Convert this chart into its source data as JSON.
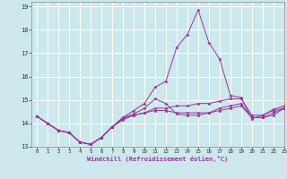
{
  "xlabel": "Windchill (Refroidissement éolien,°C)",
  "xlim": [
    -0.5,
    23
  ],
  "ylim": [
    13,
    19.2
  ],
  "yticks": [
    13,
    14,
    15,
    16,
    17,
    18,
    19
  ],
  "xticks": [
    0,
    1,
    2,
    3,
    4,
    5,
    6,
    7,
    8,
    9,
    10,
    11,
    12,
    13,
    14,
    15,
    16,
    17,
    18,
    19,
    20,
    21,
    22,
    23
  ],
  "bg_color": "#cce8ec",
  "line_color": "#993399",
  "grid_color": "#ffffff",
  "curves": [
    [
      14.3,
      14.0,
      13.7,
      13.6,
      13.2,
      13.1,
      13.4,
      13.85,
      14.25,
      14.55,
      14.85,
      15.55,
      15.8,
      17.25,
      17.8,
      18.85,
      17.45,
      16.75,
      15.2,
      15.1,
      14.2,
      14.35,
      14.6,
      14.75
    ],
    [
      14.3,
      14.0,
      13.7,
      13.6,
      13.2,
      13.1,
      13.4,
      13.85,
      14.25,
      14.4,
      14.65,
      15.05,
      14.85,
      14.4,
      14.35,
      14.35,
      14.45,
      14.65,
      14.75,
      14.85,
      14.25,
      14.25,
      14.45,
      14.65
    ],
    [
      14.3,
      14.0,
      13.7,
      13.6,
      13.2,
      13.1,
      13.4,
      13.85,
      14.2,
      14.35,
      14.45,
      14.55,
      14.55,
      14.45,
      14.45,
      14.45,
      14.45,
      14.55,
      14.65,
      14.75,
      14.25,
      14.25,
      14.35,
      14.65
    ],
    [
      14.3,
      14.0,
      13.7,
      13.6,
      13.2,
      13.1,
      13.4,
      13.85,
      14.15,
      14.35,
      14.45,
      14.65,
      14.65,
      14.75,
      14.75,
      14.85,
      14.85,
      14.95,
      15.05,
      15.05,
      14.35,
      14.35,
      14.55,
      14.65
    ]
  ]
}
